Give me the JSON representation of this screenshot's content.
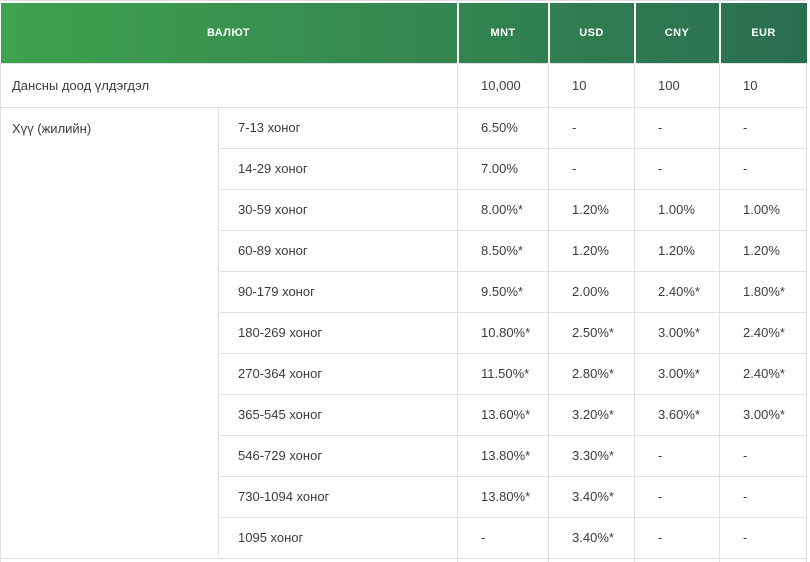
{
  "table": {
    "header": {
      "currency_label": "ВАЛЮТ",
      "currencies": [
        "MNT",
        "USD",
        "CNY",
        "EUR"
      ]
    },
    "rows": {
      "min_balance": {
        "label": "Дансны доод үлдэгдэл",
        "values": [
          "10,000",
          "10",
          "100",
          "10"
        ]
      },
      "interest": {
        "label": "Хүү (жилийн)",
        "periods": [
          {
            "period": "7-13 хоног",
            "values": [
              "6.50%",
              "-",
              "-",
              "-"
            ]
          },
          {
            "period": "14-29 хоног",
            "values": [
              "7.00%",
              "-",
              "-",
              "-"
            ]
          },
          {
            "period": "30-59 хоног",
            "values": [
              "8.00%*",
              "1.20%",
              "1.00%",
              "1.00%"
            ]
          },
          {
            "period": "60-89 хоног",
            "values": [
              "8.50%*",
              "1.20%",
              "1.20%",
              "1.20%"
            ]
          },
          {
            "period": "90-179 хоног",
            "values": [
              "9.50%*",
              "2.00%",
              "2.40%*",
              "1.80%*"
            ]
          },
          {
            "period": "180-269 хоног",
            "values": [
              "10.80%*",
              "2.50%*",
              "3.00%*",
              "2.40%*"
            ]
          },
          {
            "period": "270-364 хоног",
            "values": [
              "11.50%*",
              "2.80%*",
              "3.00%*",
              "2.40%*"
            ]
          },
          {
            "period": "365-545 хоног",
            "values": [
              "13.60%*",
              "3.20%*",
              "3.60%*",
              "3.00%*"
            ]
          },
          {
            "period": "546-729 хоног",
            "values": [
              "13.80%*",
              "3.30%*",
              "-",
              "-"
            ]
          },
          {
            "period": "730-1094 хоног",
            "values": [
              "13.80%*",
              "3.40%*",
              "-",
              "-"
            ]
          },
          {
            "period": "1095 хоног",
            "values": [
              "-",
              "3.40%*",
              "-",
              "-"
            ]
          }
        ]
      }
    },
    "colors": {
      "header_gradient_start": "#3fa24e",
      "header_gradient_end": "#2a6e52",
      "header_text": "#ffffff",
      "border": "#e0e0e0",
      "body_text": "#3c3c3c"
    }
  }
}
